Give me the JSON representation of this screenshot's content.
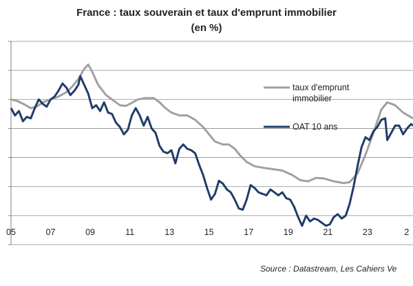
{
  "chart_data": {
    "type": "line",
    "title": "France : taux souverain et taux d'emprunt immobilier",
    "subtitle": "(en %)",
    "source": "Source : Datastream,  Les Cahiers Ve",
    "xlabel": "",
    "ylabel": "",
    "x_ticks": [
      "05",
      "07",
      "09",
      "11",
      "13",
      "15",
      "17",
      "19",
      "21",
      "23",
      "2"
    ],
    "xlim": [
      2005.0,
      2025.3
    ],
    "ylim": [
      -1,
      6
    ],
    "grid": true,
    "legend_position": "right",
    "series": [
      {
        "name": "taux d'emprunt immobilier",
        "color": "#a0a0a0",
        "points": [
          [
            2005.0,
            4.0
          ],
          [
            2005.3,
            3.95
          ],
          [
            2005.7,
            3.82
          ],
          [
            2006.0,
            3.7
          ],
          [
            2006.3,
            3.75
          ],
          [
            2006.6,
            3.9
          ],
          [
            2007.0,
            4.0
          ],
          [
            2007.4,
            4.1
          ],
          [
            2007.8,
            4.25
          ],
          [
            2008.1,
            4.45
          ],
          [
            2008.4,
            4.7
          ],
          [
            2008.7,
            5.05
          ],
          [
            2008.9,
            5.2
          ],
          [
            2009.1,
            4.95
          ],
          [
            2009.4,
            4.5
          ],
          [
            2009.8,
            4.15
          ],
          [
            2010.2,
            3.95
          ],
          [
            2010.5,
            3.8
          ],
          [
            2010.8,
            3.78
          ],
          [
            2011.1,
            3.88
          ],
          [
            2011.4,
            4.0
          ],
          [
            2011.8,
            4.05
          ],
          [
            2012.2,
            4.05
          ],
          [
            2012.5,
            3.9
          ],
          [
            2012.8,
            3.7
          ],
          [
            2013.1,
            3.55
          ],
          [
            2013.5,
            3.45
          ],
          [
            2013.9,
            3.45
          ],
          [
            2014.3,
            3.3
          ],
          [
            2014.7,
            3.05
          ],
          [
            2015.0,
            2.8
          ],
          [
            2015.3,
            2.55
          ],
          [
            2015.7,
            2.45
          ],
          [
            2016.0,
            2.45
          ],
          [
            2016.3,
            2.3
          ],
          [
            2016.6,
            2.05
          ],
          [
            2016.9,
            1.85
          ],
          [
            2017.3,
            1.7
          ],
          [
            2017.7,
            1.65
          ],
          [
            2018.2,
            1.6
          ],
          [
            2018.7,
            1.55
          ],
          [
            2019.2,
            1.4
          ],
          [
            2019.6,
            1.22
          ],
          [
            2020.0,
            1.18
          ],
          [
            2020.4,
            1.3
          ],
          [
            2020.8,
            1.28
          ],
          [
            2021.3,
            1.18
          ],
          [
            2021.8,
            1.12
          ],
          [
            2022.1,
            1.15
          ],
          [
            2022.5,
            1.45
          ],
          [
            2022.9,
            2.1
          ],
          [
            2023.3,
            2.85
          ],
          [
            2023.7,
            3.65
          ],
          [
            2024.0,
            3.9
          ],
          [
            2024.4,
            3.8
          ],
          [
            2024.8,
            3.55
          ],
          [
            2025.3,
            3.35
          ]
        ]
      },
      {
        "name": "OAT 10 ans",
        "color": "#1f3c6b",
        "points": [
          [
            2005.0,
            3.7
          ],
          [
            2005.2,
            3.45
          ],
          [
            2005.4,
            3.6
          ],
          [
            2005.6,
            3.25
          ],
          [
            2005.8,
            3.4
          ],
          [
            2006.0,
            3.35
          ],
          [
            2006.2,
            3.7
          ],
          [
            2006.4,
            4.0
          ],
          [
            2006.6,
            3.85
          ],
          [
            2006.8,
            3.75
          ],
          [
            2007.0,
            4.0
          ],
          [
            2007.2,
            4.1
          ],
          [
            2007.4,
            4.3
          ],
          [
            2007.6,
            4.55
          ],
          [
            2007.8,
            4.4
          ],
          [
            2008.0,
            4.15
          ],
          [
            2008.2,
            4.3
          ],
          [
            2008.4,
            4.5
          ],
          [
            2008.5,
            4.8
          ],
          [
            2008.7,
            4.5
          ],
          [
            2008.9,
            4.2
          ],
          [
            2009.1,
            3.7
          ],
          [
            2009.3,
            3.8
          ],
          [
            2009.5,
            3.6
          ],
          [
            2009.7,
            3.9
          ],
          [
            2009.9,
            3.55
          ],
          [
            2010.1,
            3.5
          ],
          [
            2010.3,
            3.2
          ],
          [
            2010.5,
            3.05
          ],
          [
            2010.7,
            2.8
          ],
          [
            2010.9,
            2.95
          ],
          [
            2011.1,
            3.45
          ],
          [
            2011.3,
            3.7
          ],
          [
            2011.5,
            3.45
          ],
          [
            2011.7,
            3.1
          ],
          [
            2011.9,
            3.4
          ],
          [
            2012.1,
            3.0
          ],
          [
            2012.3,
            2.85
          ],
          [
            2012.5,
            2.4
          ],
          [
            2012.7,
            2.2
          ],
          [
            2012.9,
            2.15
          ],
          [
            2013.1,
            2.25
          ],
          [
            2013.3,
            1.8
          ],
          [
            2013.5,
            2.3
          ],
          [
            2013.7,
            2.45
          ],
          [
            2013.9,
            2.3
          ],
          [
            2014.1,
            2.25
          ],
          [
            2014.3,
            2.15
          ],
          [
            2014.5,
            1.75
          ],
          [
            2014.7,
            1.4
          ],
          [
            2014.9,
            0.95
          ],
          [
            2015.1,
            0.55
          ],
          [
            2015.3,
            0.75
          ],
          [
            2015.5,
            1.2
          ],
          [
            2015.7,
            1.1
          ],
          [
            2015.9,
            0.9
          ],
          [
            2016.1,
            0.8
          ],
          [
            2016.3,
            0.55
          ],
          [
            2016.5,
            0.25
          ],
          [
            2016.7,
            0.2
          ],
          [
            2016.9,
            0.55
          ],
          [
            2017.1,
            1.05
          ],
          [
            2017.3,
            0.95
          ],
          [
            2017.5,
            0.8
          ],
          [
            2017.7,
            0.75
          ],
          [
            2017.9,
            0.7
          ],
          [
            2018.1,
            0.9
          ],
          [
            2018.3,
            0.8
          ],
          [
            2018.5,
            0.7
          ],
          [
            2018.7,
            0.8
          ],
          [
            2018.9,
            0.6
          ],
          [
            2019.1,
            0.55
          ],
          [
            2019.3,
            0.3
          ],
          [
            2019.5,
            -0.05
          ],
          [
            2019.7,
            -0.35
          ],
          [
            2019.9,
            0.0
          ],
          [
            2020.1,
            -0.2
          ],
          [
            2020.3,
            -0.1
          ],
          [
            2020.5,
            -0.15
          ],
          [
            2020.7,
            -0.25
          ],
          [
            2020.9,
            -0.35
          ],
          [
            2021.1,
            -0.3
          ],
          [
            2021.3,
            -0.05
          ],
          [
            2021.5,
            0.05
          ],
          [
            2021.7,
            -0.1
          ],
          [
            2021.9,
            0.0
          ],
          [
            2022.1,
            0.4
          ],
          [
            2022.3,
            1.0
          ],
          [
            2022.5,
            1.7
          ],
          [
            2022.7,
            2.35
          ],
          [
            2022.9,
            2.7
          ],
          [
            2023.1,
            2.6
          ],
          [
            2023.3,
            2.9
          ],
          [
            2023.5,
            3.05
          ],
          [
            2023.7,
            3.3
          ],
          [
            2023.9,
            3.35
          ],
          [
            2024.0,
            2.6
          ],
          [
            2024.2,
            2.85
          ],
          [
            2024.4,
            3.1
          ],
          [
            2024.6,
            3.1
          ],
          [
            2024.8,
            2.8
          ],
          [
            2025.0,
            3.0
          ],
          [
            2025.2,
            3.15
          ],
          [
            2025.3,
            3.1
          ]
        ]
      }
    ]
  }
}
